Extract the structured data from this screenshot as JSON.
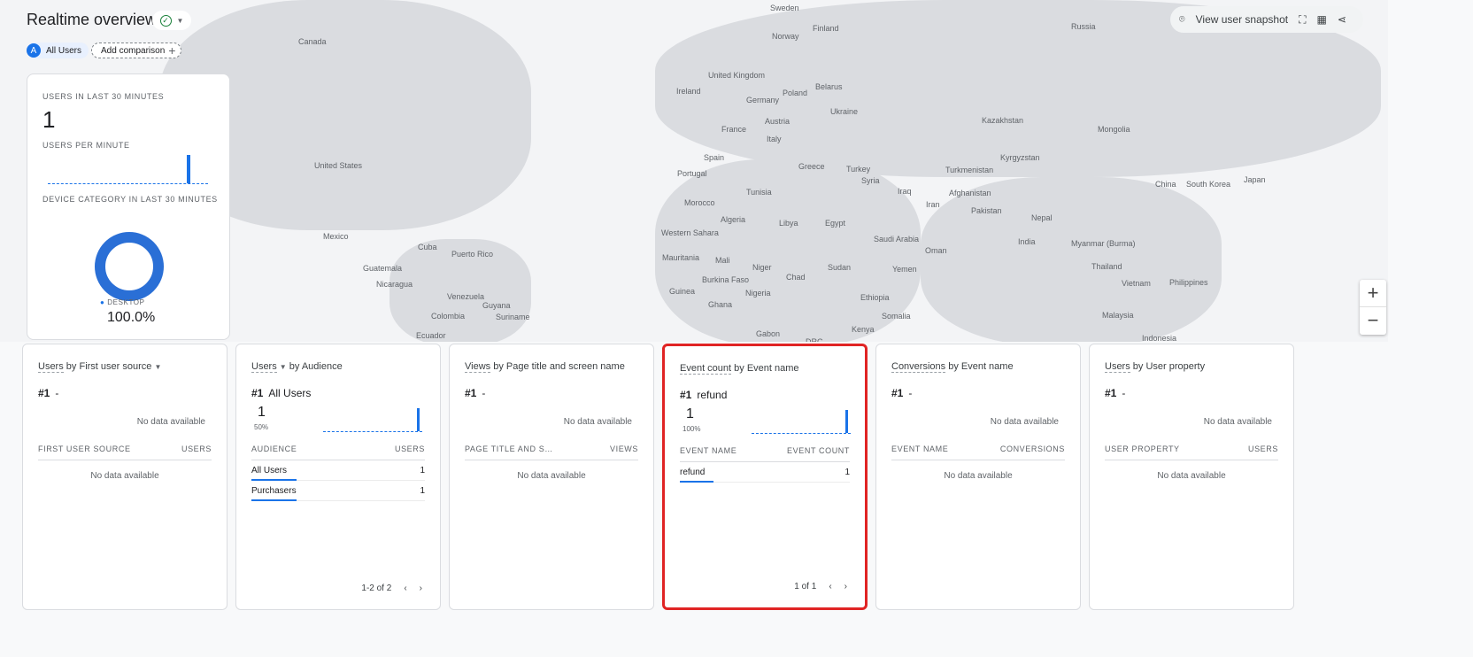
{
  "header": {
    "title": "Realtime overview",
    "status_icon": "check-circle",
    "segment_initial": "A",
    "segment": "All Users",
    "add_comparison": "Add comparison"
  },
  "toolbar": {
    "snapshot": "View user snapshot"
  },
  "map": {
    "labels": [
      "Canada",
      "United States",
      "Mexico",
      "Cuba",
      "Puerto Rico",
      "Guatemala",
      "Nicaragua",
      "Venezuela",
      "Guyana",
      "Suriname",
      "Colombia",
      "Ecuador",
      "Sweden",
      "Finland",
      "Norway",
      "Russia",
      "United Kingdom",
      "Ireland",
      "Germany",
      "Poland",
      "Belarus",
      "Ukraine",
      "France",
      "Austria",
      "Italy",
      "Spain",
      "Portugal",
      "Greece",
      "Turkey",
      "Kazakhstan",
      "Mongolia",
      "Turkmenistan",
      "Kyrgyzstan",
      "China",
      "South Korea",
      "Japan",
      "Afghanistan",
      "Pakistan",
      "Iran",
      "Iraq",
      "Syria",
      "Tunisia",
      "Morocco",
      "Algeria",
      "Libya",
      "Egypt",
      "Western Sahara",
      "Mauritania",
      "Mali",
      "Niger",
      "Chad",
      "Sudan",
      "Saudi Arabia",
      "Oman",
      "Yemen",
      "Ethiopia",
      "Somalia",
      "Kenya",
      "Gabon",
      "DRC",
      "Nigeria",
      "Burkina Faso",
      "Ghana",
      "Guinea",
      "Nepal",
      "India",
      "Myanmar (Burma)",
      "Thailand",
      "Vietnam",
      "Philippines",
      "Malaysia",
      "Indonesia"
    ]
  },
  "summary": {
    "users_label": "Users in last 30 minutes",
    "users_value": "1",
    "per_minute_label": "Users per minute",
    "device_label": "Device category in last 30 minutes",
    "device_name": "DESKTOP",
    "device_pct": "100.0%",
    "device_share": 1.0,
    "accent": "#1a73e8"
  },
  "cards": [
    {
      "metric": "Users",
      "dim": "by First user source",
      "rank": "#1",
      "top": "-",
      "no_data": "No data available",
      "col1": "First user source",
      "col2": "Users",
      "table_no_data": "No data available"
    },
    {
      "metric": "Users",
      "dim": "by Audience",
      "rank": "#1",
      "top": "All Users",
      "value": "1",
      "pct": "50%",
      "col1": "Audience",
      "col2": "Users",
      "rows": [
        {
          "name": "All Users",
          "value": "1",
          "share": 0.5
        },
        {
          "name": "Purchasers",
          "value": "1",
          "share": 0.5
        }
      ],
      "pagination": "1-2 of 2"
    },
    {
      "metric": "Views",
      "dim": "by Page title and screen name",
      "rank": "#1",
      "top": "-",
      "no_data": "No data available",
      "col1": "Page title and s…",
      "col2": "Views",
      "table_no_data": "No data available"
    },
    {
      "metric": "Event count",
      "dim": "by Event name",
      "rank": "#1",
      "top": "refund",
      "value": "1",
      "pct": "100%",
      "col1": "Event name",
      "col2": "Event count",
      "rows": [
        {
          "name": "refund",
          "value": "1",
          "share": 1.0
        }
      ],
      "pagination": "1 of 1"
    },
    {
      "metric": "Conversions",
      "dim": "by Event name",
      "rank": "#1",
      "top": "-",
      "no_data": "No data available",
      "col1": "Event name",
      "col2": "Conversions",
      "table_no_data": "No data available"
    },
    {
      "metric": "Users",
      "dim": "by User property",
      "rank": "#1",
      "top": "-",
      "no_data": "No data available",
      "col1": "User property",
      "col2": "Users",
      "table_no_data": "No data available"
    }
  ]
}
